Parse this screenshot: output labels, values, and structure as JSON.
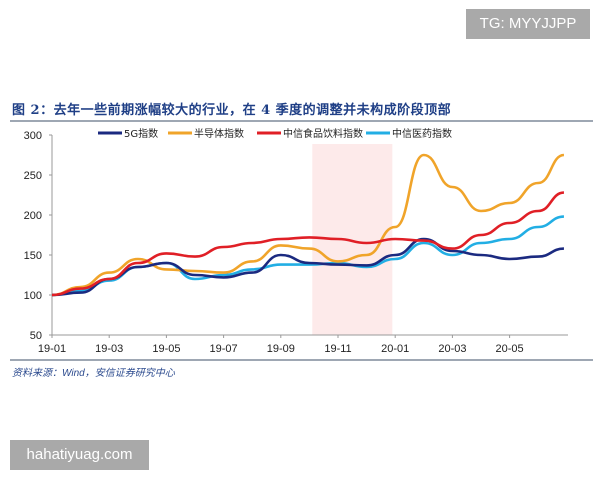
{
  "watermarks": {
    "top": "TG: MYYJJPP",
    "bottom": "hahatiyuag.com"
  },
  "figure_title": "图 2：去年一些前期涨幅较大的行业，在 4 季度的调整并未构成阶段顶部",
  "source": "资料来源：Wind，安信证券研究中心",
  "chart_data": {
    "type": "line",
    "title": "",
    "xlabel": "",
    "ylabel": "",
    "ylim": [
      50,
      300
    ],
    "yticks": [
      50,
      100,
      150,
      200,
      250,
      300
    ],
    "xticks": [
      "19-01",
      "19-03",
      "19-05",
      "19-07",
      "19-09",
      "19-11",
      "20-01",
      "20-03",
      "20-05"
    ],
    "x": [
      "2019-01",
      "2019-02",
      "2019-03",
      "2019-04",
      "2019-05",
      "2019-06",
      "2019-07",
      "2019-08",
      "2019-09",
      "2019-10",
      "2019-11",
      "2019-12",
      "2020-01",
      "2020-02",
      "2020-03",
      "2020-04",
      "2020-05",
      "2020-06",
      "2020-07"
    ],
    "legend_position": "top",
    "grid": false,
    "shaded_region": {
      "from": "2019-10",
      "to": "2019-12",
      "color": "#fdeaea"
    },
    "series": [
      {
        "name": "5G指数",
        "color": "#1b2a80",
        "values": [
          100,
          103,
          120,
          135,
          140,
          125,
          122,
          128,
          150,
          140,
          138,
          137,
          150,
          170,
          155,
          150,
          145,
          148,
          158
        ]
      },
      {
        "name": "半导体指数",
        "color": "#f0a42a",
        "values": [
          100,
          110,
          128,
          145,
          132,
          130,
          128,
          142,
          162,
          158,
          142,
          150,
          185,
          275,
          235,
          205,
          215,
          240,
          275
        ]
      },
      {
        "name": "中信食品饮料指数",
        "color": "#e01f26",
        "values": [
          100,
          108,
          120,
          140,
          152,
          148,
          160,
          165,
          170,
          172,
          170,
          165,
          170,
          168,
          158,
          175,
          190,
          205,
          228
        ]
      },
      {
        "name": "中信医药指数",
        "color": "#22aee4",
        "values": [
          100,
          105,
          118,
          135,
          140,
          120,
          125,
          132,
          138,
          138,
          140,
          135,
          145,
          165,
          150,
          165,
          170,
          185,
          198
        ]
      }
    ]
  }
}
